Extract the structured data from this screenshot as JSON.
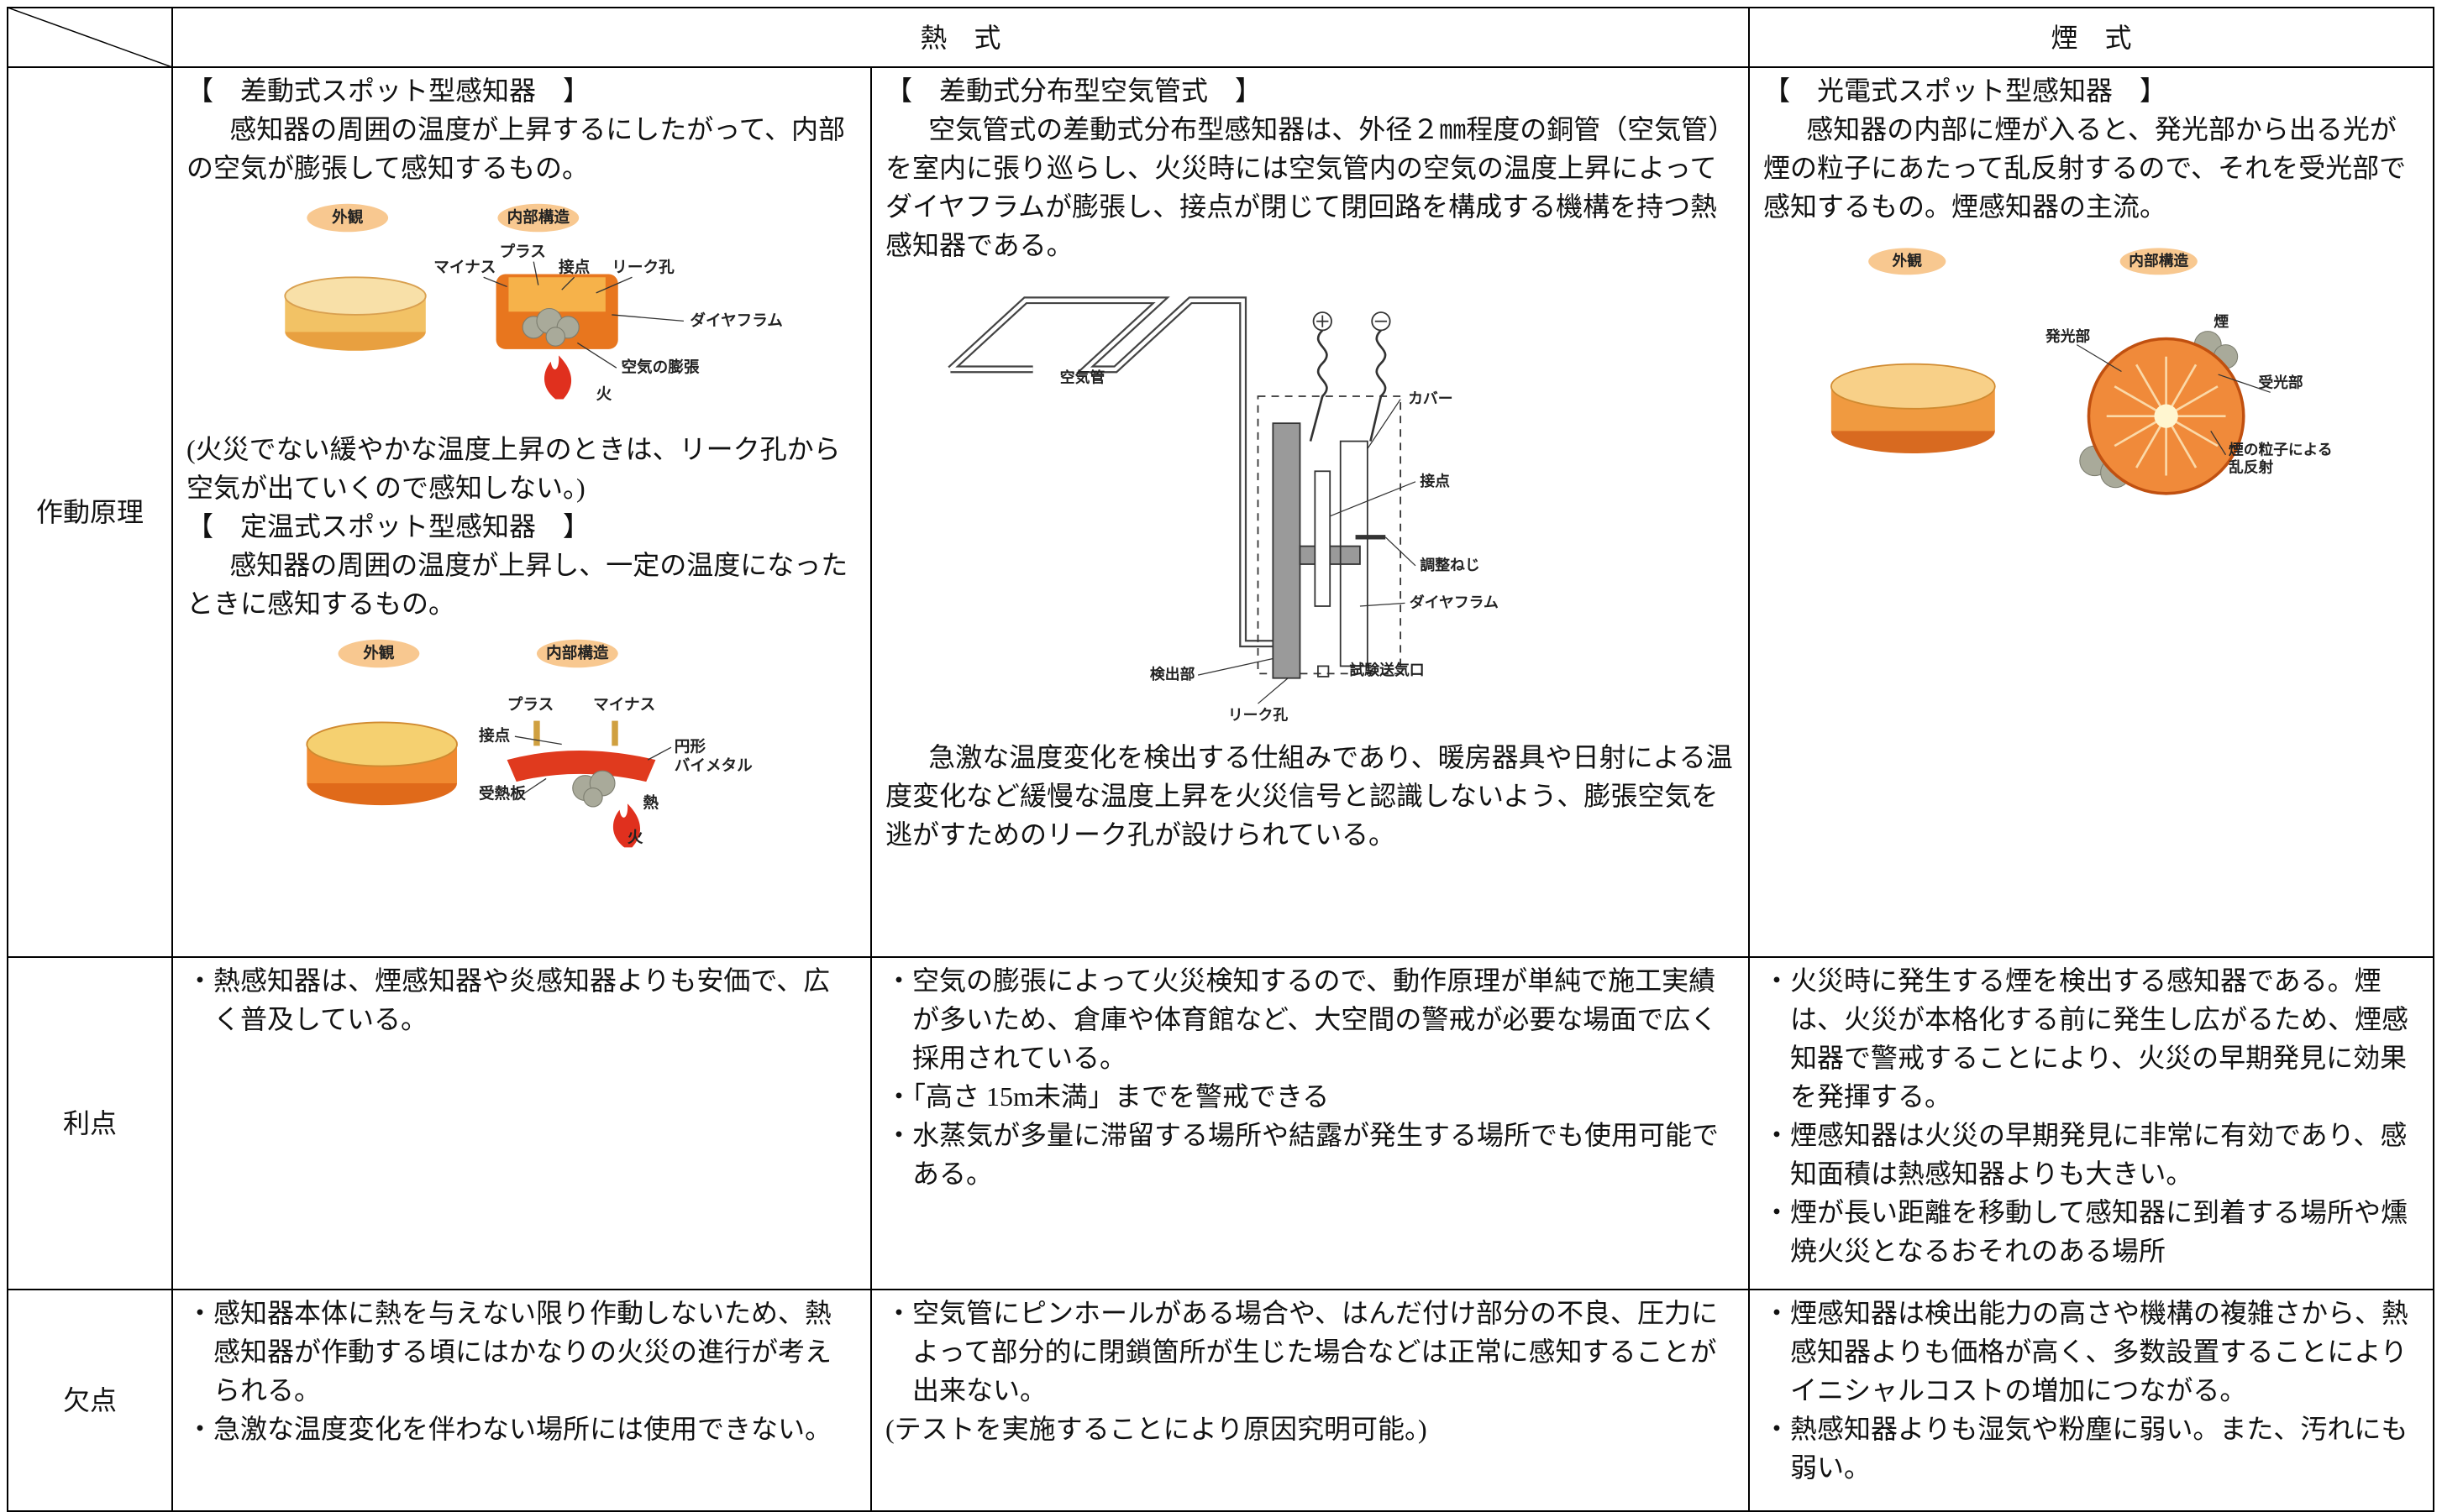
{
  "table": {
    "header": {
      "heat": "熱　式",
      "smoke": "煙　式"
    },
    "rows": [
      {
        "label": "作動原理",
        "cells": [
          [
            {
              "heading": "【　差動式スポット型感知器　】"
            },
            {
              "paragraph": "感知器の周囲の温度が上昇するにしたがって、内部の空気が膨張して感知するもの。"
            },
            {
              "figure": [
                "外観",
                "内部構造",
                "マイナス",
                "プラス",
                "接点",
                "リーク孔",
                "ダイヤフラム",
                "空気の膨張",
                "火"
              ]
            },
            {
              "note": "(火災でない緩やかな温度上昇のときは、リーク孔から空気が出ていくので感知しない。)"
            },
            {
              "heading": "【　定温式スポット型感知器　】"
            },
            {
              "paragraph": "感知器の周囲の温度が上昇し、一定の温度になったときに感知するもの。"
            },
            {
              "figure": [
                "外観",
                "内部構造",
                "プラス",
                "マイナス",
                "接点",
                [
                  "円形",
                  "バイメタル"
                ],
                "受熱板",
                "熱",
                "火"
              ]
            }
          ],
          [
            {
              "heading": "【　差動式分布型空気管式　】"
            },
            {
              "paragraph": "空気管式の差動式分布型感知器は、外径２㎜程度の銅管（空気管）を室内に張り巡らし、火災時には空気管内の空気の温度上昇によってダイヤフラムが膨張し、接点が閉じて閉回路を構成する機構を持つ熱感知器である。"
            },
            {
              "figure": [
                "空気管",
                "カバー",
                "接点",
                "調整ねじ",
                "ダイヤフラム",
                "検出部",
                "試験送気口",
                "リーク孔"
              ]
            },
            {
              "paragraph": "急激な温度変化を検出する仕組みであり、暖房器具や日射による温度変化など緩慢な温度上昇を火災信号と認識しないよう、膨張空気を逃がすためのリーク孔が設けられている。"
            }
          ],
          [
            {
              "heading": "【　光電式スポット型感知器　】"
            },
            {
              "paragraph": "感知器の内部に煙が入ると、発光部から出る光が煙の粒子にあたって乱反射するので、それを受光部で感知するもの。煙感知器の主流。"
            },
            {
              "figure": [
                "外観",
                "内部構造",
                "発光部",
                "煙",
                "受光部",
                [
                  "煙の粒子による",
                  "乱反射"
                ]
              ]
            }
          ]
        ]
      },
      {
        "label": "利点",
        "cells": [
          [
            "・熱感知器は、煙感知器や炎感知器よりも安価で、広く普及している。"
          ],
          [
            "・空気の膨張によって火災検知するので、動作原理が単純で施工実績が多いため、倉庫や体育館など、大空間の警戒が必要な場面で広く採用されている。",
            "・「高さ 15m未満」までを警戒できる",
            "・水蒸気が多量に滞留する場所や結露が発生する場所でも使用可能である。"
          ],
          [
            "・火災時に発生する煙を検出する感知器である。煙は、火災が本格化する前に発生し広がるため、煙感知器で警戒することにより、火災の早期発見に効果を発揮する。",
            "・煙感知器は火災の早期発見に非常に有効であり、感知面積は熱感知器よりも大きい。",
            "・煙が長い距離を移動して感知器に到着する場所や燻焼火災となるおそれのある場所"
          ]
        ]
      },
      {
        "label": "欠点",
        "cells": [
          [
            "・感知器本体に熱を与えない限り作動しないため、熱感知器が作動する頃にはかなりの火災の進行が考えられる。",
            "・急激な温度変化を伴わない場所には使用できない。"
          ],
          [
            "・空気管にピンホールがある場合や、はんだ付け部分の不良、圧力によって部分的に閉鎖箇所が生じた場合などは正常に感知することが出来ない。",
            "(テストを実施することにより原因究明可能。)"
          ],
          [
            "・煙感知器は検出能力の高さや機構の複雑さから、熱感知器よりも価格が高く、多数設置することによりイニシャルコストの増加につながる。",
            "・熱感知器よりも湿気や粉塵に弱い。また、汚れにも弱い。"
          ]
        ]
      }
    ]
  }
}
